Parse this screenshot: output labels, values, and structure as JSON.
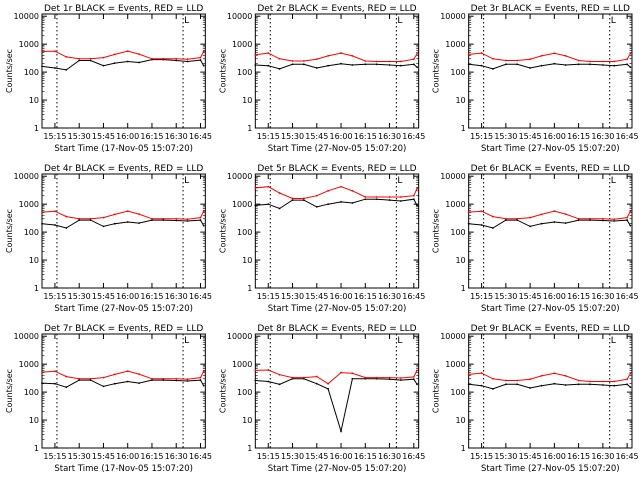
{
  "colors": {
    "events": "#000000",
    "lld": "#ff0000",
    "axes": "#000000"
  },
  "common": {
    "ylabel": "Counts/sec",
    "xlabel_a": "Start Time (17-Nov-05 15:07:20)",
    "xlabel_b": "Start Time (27-Nov-05 15:07:20)",
    "xticks": [
      "15:15",
      "15:30",
      "15:45",
      "16:00",
      "16:15",
      "16:30",
      "16:45"
    ],
    "yticks": [
      "1",
      "10",
      "100",
      "1000",
      "10000"
    ],
    "corner_mark": "L"
  },
  "chart_data": [
    {
      "type": "line",
      "title": "Det 1r BLACK = Events, RED = LLD",
      "xlabel": "Start Time (17-Nov-05 15:07:20)",
      "ylabel": "Counts/sec",
      "y_scale": "log",
      "ylim": [
        1,
        12000
      ],
      "x": [
        "15:07",
        "15:15",
        "15:22",
        "15:30",
        "15:37",
        "15:45",
        "15:52",
        "16:00",
        "16:07",
        "16:15",
        "16:22",
        "16:30",
        "16:37",
        "16:45",
        "16:47"
      ],
      "series": [
        {
          "name": "Events",
          "color": "black",
          "values": [
            160,
            140,
            120,
            260,
            260,
            170,
            210,
            240,
            220,
            280,
            280,
            260,
            240,
            270,
            170
          ]
        },
        {
          "name": "LLD",
          "color": "red",
          "values": [
            550,
            560,
            350,
            300,
            300,
            330,
            430,
            560,
            440,
            300,
            300,
            300,
            290,
            330,
            550
          ]
        }
      ]
    },
    {
      "type": "line",
      "title": "Det 2r BLACK = Events, RED = LLD",
      "xlabel": "Start Time (27-Nov-05 15:07:20)",
      "ylabel": "Counts/sec",
      "y_scale": "log",
      "ylim": [
        1,
        12000
      ],
      "x": [
        "15:07",
        "15:15",
        "15:22",
        "15:30",
        "15:37",
        "15:45",
        "15:52",
        "16:00",
        "16:07",
        "16:15",
        "16:22",
        "16:30",
        "16:37",
        "16:45",
        "16:47"
      ],
      "series": [
        {
          "name": "Events",
          "color": "black",
          "values": [
            180,
            170,
            130,
            190,
            190,
            140,
            170,
            200,
            180,
            190,
            190,
            180,
            170,
            190,
            150
          ]
        },
        {
          "name": "LLD",
          "color": "red",
          "values": [
            420,
            480,
            300,
            250,
            250,
            290,
            380,
            480,
            380,
            250,
            240,
            240,
            240,
            290,
            450
          ]
        }
      ]
    },
    {
      "type": "line",
      "title": "Det 3r BLACK = Events, RED = LLD",
      "xlabel": "Start Time (27-Nov-05 15:07:20)",
      "ylabel": "Counts/sec",
      "y_scale": "log",
      "ylim": [
        1,
        12000
      ],
      "x": [
        "15:07",
        "15:15",
        "15:22",
        "15:30",
        "15:37",
        "15:45",
        "15:52",
        "16:00",
        "16:07",
        "16:15",
        "16:22",
        "16:30",
        "16:37",
        "16:45",
        "16:47"
      ],
      "series": [
        {
          "name": "Events",
          "color": "black",
          "values": [
            190,
            170,
            130,
            190,
            190,
            140,
            170,
            200,
            180,
            190,
            190,
            180,
            170,
            190,
            150
          ]
        },
        {
          "name": "LLD",
          "color": "red",
          "values": [
            430,
            480,
            300,
            260,
            260,
            290,
            380,
            470,
            380,
            260,
            240,
            240,
            240,
            290,
            460
          ]
        }
      ]
    },
    {
      "type": "line",
      "title": "Det 4r BLACK = Events, RED = LLD",
      "xlabel": "Start Time (27-Nov-05 15:07:20)",
      "ylabel": "Counts/sec",
      "y_scale": "log",
      "ylim": [
        1,
        12000
      ],
      "x": [
        "15:07",
        "15:15",
        "15:22",
        "15:30",
        "15:37",
        "15:45",
        "15:52",
        "16:00",
        "16:07",
        "16:15",
        "16:22",
        "16:30",
        "16:37",
        "16:45",
        "16:47"
      ],
      "series": [
        {
          "name": "Events",
          "color": "black",
          "values": [
            200,
            180,
            140,
            270,
            270,
            160,
            200,
            230,
            210,
            270,
            270,
            260,
            250,
            270,
            170
          ]
        },
        {
          "name": "LLD",
          "color": "red",
          "values": [
            520,
            560,
            360,
            300,
            300,
            330,
            430,
            560,
            440,
            300,
            300,
            300,
            290,
            330,
            560
          ]
        }
      ]
    },
    {
      "type": "line",
      "title": "Det 5r BLACK = Events, RED = LLD",
      "xlabel": "Start Time (27-Nov-05 15:07:20)",
      "ylabel": "Counts/sec",
      "y_scale": "log",
      "ylim": [
        1,
        12000
      ],
      "x": [
        "15:07",
        "15:15",
        "15:22",
        "15:30",
        "15:37",
        "15:45",
        "15:52",
        "16:00",
        "16:07",
        "16:15",
        "16:22",
        "16:30",
        "16:37",
        "16:45",
        "16:47"
      ],
      "series": [
        {
          "name": "Events",
          "color": "black",
          "values": [
            900,
            1000,
            700,
            1400,
            1400,
            800,
            1000,
            1200,
            1100,
            1500,
            1500,
            1400,
            1300,
            1500,
            900
          ]
        },
        {
          "name": "LLD",
          "color": "red",
          "values": [
            3800,
            4200,
            2500,
            1600,
            1600,
            2000,
            3000,
            4200,
            3000,
            1800,
            1800,
            1800,
            1800,
            2000,
            3600
          ]
        }
      ]
    },
    {
      "type": "line",
      "title": "Det 6r BLACK = Events, RED = LLD",
      "xlabel": "Start Time (27-Nov-05 15:07:20)",
      "ylabel": "Counts/sec",
      "y_scale": "log",
      "ylim": [
        1,
        12000
      ],
      "x": [
        "15:07",
        "15:15",
        "15:22",
        "15:30",
        "15:37",
        "15:45",
        "15:52",
        "16:00",
        "16:07",
        "16:15",
        "16:22",
        "16:30",
        "16:37",
        "16:45",
        "16:47"
      ],
      "series": [
        {
          "name": "Events",
          "color": "black",
          "values": [
            200,
            180,
            140,
            270,
            270,
            160,
            200,
            230,
            210,
            270,
            270,
            260,
            250,
            270,
            170
          ]
        },
        {
          "name": "LLD",
          "color": "red",
          "values": [
            520,
            560,
            360,
            300,
            300,
            330,
            430,
            560,
            440,
            300,
            300,
            300,
            290,
            330,
            560
          ]
        }
      ]
    },
    {
      "type": "line",
      "title": "Det 7r BLACK = Events, RED = LLD",
      "xlabel": "Start Time (17-Nov-05 15:07:20)",
      "ylabel": "Counts/sec",
      "y_scale": "log",
      "ylim": [
        1,
        12000
      ],
      "x": [
        "15:07",
        "15:15",
        "15:22",
        "15:30",
        "15:37",
        "15:45",
        "15:52",
        "16:00",
        "16:07",
        "16:15",
        "16:22",
        "16:30",
        "16:37",
        "16:45",
        "16:47"
      ],
      "series": [
        {
          "name": "Events",
          "color": "black",
          "values": [
            210,
            200,
            150,
            270,
            270,
            160,
            200,
            240,
            210,
            270,
            270,
            260,
            250,
            270,
            170
          ]
        },
        {
          "name": "LLD",
          "color": "red",
          "values": [
            520,
            560,
            360,
            300,
            300,
            330,
            430,
            560,
            440,
            300,
            300,
            300,
            290,
            330,
            560
          ]
        }
      ]
    },
    {
      "type": "line",
      "title": "Det 8r BLACK = Events, RED = LLD",
      "xlabel": "Start Time (27-Nov-05 15:07:20)",
      "ylabel": "Counts/sec",
      "y_scale": "log",
      "ylim": [
        1,
        12000
      ],
      "x": [
        "15:07",
        "15:15",
        "15:22",
        "15:30",
        "15:37",
        "15:45",
        "15:52",
        "16:00",
        "16:07",
        "16:15",
        "16:22",
        "16:30",
        "16:37",
        "16:45",
        "16:47"
      ],
      "series": [
        {
          "name": "Events",
          "color": "black",
          "values": [
            260,
            240,
            190,
            300,
            300,
            200,
            130,
            4,
            300,
            300,
            300,
            290,
            270,
            290,
            190
          ]
        },
        {
          "name": "LLD",
          "color": "red",
          "values": [
            600,
            620,
            420,
            330,
            330,
            360,
            200,
            500,
            470,
            330,
            330,
            330,
            320,
            350,
            600
          ]
        }
      ]
    },
    {
      "type": "line",
      "title": "Det 9r BLACK = Events, RED = LLD",
      "xlabel": "Start Time (27-Nov-05 15:07:20)",
      "ylabel": "Counts/sec",
      "y_scale": "log",
      "ylim": [
        1,
        12000
      ],
      "x": [
        "15:07",
        "15:15",
        "15:22",
        "15:30",
        "15:37",
        "15:45",
        "15:52",
        "16:00",
        "16:07",
        "16:15",
        "16:22",
        "16:30",
        "16:37",
        "16:45",
        "16:47"
      ],
      "series": [
        {
          "name": "Events",
          "color": "black",
          "values": [
            190,
            170,
            130,
            190,
            190,
            140,
            170,
            200,
            180,
            190,
            190,
            180,
            170,
            190,
            150
          ]
        },
        {
          "name": "LLD",
          "color": "red",
          "values": [
            430,
            480,
            300,
            260,
            260,
            290,
            380,
            470,
            380,
            260,
            240,
            240,
            240,
            290,
            460
          ]
        }
      ]
    }
  ]
}
